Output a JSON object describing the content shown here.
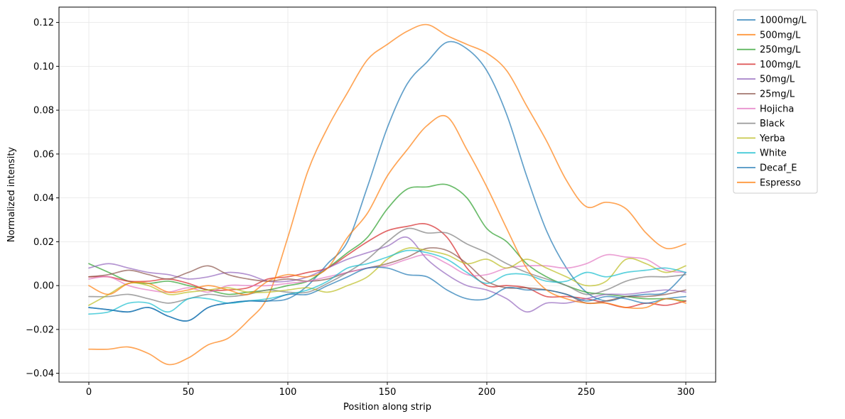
{
  "chart_data": {
    "type": "line",
    "title": "",
    "xlabel": "Position along strip",
    "ylabel": "Normalized intensity",
    "xlim": [
      -15,
      315
    ],
    "ylim": [
      -0.044,
      0.127
    ],
    "xticks": [
      0,
      50,
      100,
      150,
      200,
      250,
      300
    ],
    "xtick_labels": [
      "0",
      "50",
      "100",
      "150",
      "200",
      "250",
      "300"
    ],
    "yticks": [
      -0.04,
      -0.02,
      0.0,
      0.02,
      0.04,
      0.06,
      0.08,
      0.1,
      0.12
    ],
    "ytick_labels": [
      "−0.04",
      "−0.02",
      "0.00",
      "0.02",
      "0.04",
      "0.06",
      "0.08",
      "0.10",
      "0.12"
    ],
    "grid": true,
    "legend_position": "outside-top-right",
    "x": [
      0,
      10,
      20,
      30,
      40,
      50,
      60,
      70,
      80,
      90,
      100,
      110,
      120,
      130,
      140,
      150,
      160,
      170,
      180,
      190,
      200,
      210,
      220,
      230,
      240,
      250,
      260,
      270,
      280,
      290,
      300
    ],
    "series": [
      {
        "name": "1000mg/L",
        "color": "#1f77b4",
        "values": [
          -0.01,
          -0.011,
          -0.012,
          -0.01,
          -0.014,
          -0.016,
          -0.01,
          -0.008,
          -0.007,
          -0.007,
          -0.006,
          0.0,
          0.01,
          0.02,
          0.045,
          0.072,
          0.092,
          0.102,
          0.111,
          0.108,
          0.098,
          0.078,
          0.05,
          0.025,
          0.008,
          -0.003,
          -0.007,
          -0.005,
          -0.004,
          -0.003,
          0.006
        ]
      },
      {
        "name": "500mg/L",
        "color": "#ff7f0e",
        "values": [
          -0.029,
          -0.029,
          -0.028,
          -0.031,
          -0.036,
          -0.033,
          -0.027,
          -0.024,
          -0.016,
          -0.005,
          0.022,
          0.052,
          0.072,
          0.088,
          0.103,
          0.11,
          0.116,
          0.119,
          0.114,
          0.11,
          0.106,
          0.098,
          0.082,
          0.066,
          0.048,
          0.036,
          0.038,
          0.035,
          0.024,
          0.017,
          0.019
        ]
      },
      {
        "name": "250mg/L",
        "color": "#2ca02c",
        "values": [
          0.01,
          0.006,
          0.002,
          0.001,
          0.002,
          0.0,
          -0.002,
          -0.004,
          -0.003,
          -0.002,
          0.0,
          0.002,
          0.008,
          0.015,
          0.022,
          0.035,
          0.044,
          0.045,
          0.046,
          0.04,
          0.026,
          0.02,
          0.01,
          0.004,
          0.0,
          -0.003,
          -0.004,
          -0.005,
          -0.006,
          -0.006,
          -0.007
        ]
      },
      {
        "name": "100mg/L",
        "color": "#d62728",
        "values": [
          0.004,
          0.004,
          0.002,
          0.002,
          0.003,
          0.001,
          -0.002,
          -0.002,
          -0.001,
          0.003,
          0.004,
          0.006,
          0.008,
          0.014,
          0.02,
          0.025,
          0.027,
          0.028,
          0.022,
          0.008,
          0.0,
          0.0,
          -0.001,
          -0.005,
          -0.005,
          -0.006,
          -0.008,
          -0.01,
          -0.008,
          -0.009,
          -0.007
        ]
      },
      {
        "name": "50mg/L",
        "color": "#9467bd",
        "values": [
          0.008,
          0.01,
          0.008,
          0.006,
          0.005,
          0.003,
          0.004,
          0.006,
          0.005,
          0.002,
          0.002,
          0.004,
          0.008,
          0.012,
          0.015,
          0.018,
          0.022,
          0.012,
          0.005,
          0.0,
          -0.002,
          -0.006,
          -0.012,
          -0.008,
          -0.008,
          -0.006,
          -0.004,
          -0.004,
          -0.003,
          -0.002,
          -0.003
        ]
      },
      {
        "name": "25mg/L",
        "color": "#8c564b",
        "values": [
          0.004,
          0.005,
          0.007,
          0.005,
          0.003,
          0.006,
          0.009,
          0.005,
          0.003,
          0.002,
          0.003,
          0.002,
          0.003,
          0.006,
          0.008,
          0.01,
          0.013,
          0.017,
          0.016,
          0.01,
          0.002,
          -0.001,
          -0.001,
          -0.002,
          -0.004,
          -0.008,
          -0.007,
          -0.005,
          -0.005,
          -0.004,
          -0.002
        ]
      },
      {
        "name": "Hojicha",
        "color": "#e377c2",
        "values": [
          0.003,
          0.004,
          0.0,
          -0.002,
          -0.003,
          -0.001,
          -0.003,
          0.0,
          0.0,
          0.0,
          0.001,
          0.002,
          0.004,
          0.006,
          0.008,
          0.009,
          0.012,
          0.014,
          0.01,
          0.005,
          0.005,
          0.008,
          0.009,
          0.009,
          0.008,
          0.01,
          0.014,
          0.013,
          0.012,
          0.007,
          0.006
        ]
      },
      {
        "name": "Black",
        "color": "#7f7f7f",
        "values": [
          -0.005,
          -0.005,
          -0.004,
          -0.006,
          -0.008,
          -0.006,
          -0.004,
          -0.005,
          -0.004,
          -0.002,
          -0.003,
          -0.003,
          0.001,
          0.006,
          0.012,
          0.02,
          0.026,
          0.024,
          0.024,
          0.019,
          0.015,
          0.01,
          0.006,
          0.003,
          0.0,
          -0.004,
          -0.002,
          0.002,
          0.004,
          0.004,
          0.005
        ]
      },
      {
        "name": "Yerba",
        "color": "#bcbd22",
        "values": [
          -0.009,
          -0.004,
          0.001,
          0.0,
          -0.004,
          -0.003,
          -0.002,
          -0.001,
          -0.003,
          -0.003,
          -0.002,
          -0.001,
          -0.003,
          0.0,
          0.004,
          0.012,
          0.017,
          0.016,
          0.014,
          0.01,
          0.012,
          0.008,
          0.012,
          0.008,
          0.004,
          0.0,
          0.002,
          0.012,
          0.01,
          0.006,
          0.009
        ]
      },
      {
        "name": "White",
        "color": "#17becf",
        "values": [
          -0.013,
          -0.012,
          -0.008,
          -0.008,
          -0.012,
          -0.006,
          -0.006,
          -0.008,
          -0.007,
          -0.006,
          -0.004,
          -0.002,
          0.002,
          0.008,
          0.01,
          0.013,
          0.016,
          0.015,
          0.012,
          0.006,
          0.001,
          0.005,
          0.005,
          0.002,
          0.002,
          0.006,
          0.004,
          0.006,
          0.007,
          0.008,
          0.006
        ]
      },
      {
        "name": "Decaf_E",
        "color": "#1f77b4",
        "values": [
          -0.01,
          -0.011,
          -0.012,
          -0.01,
          -0.014,
          -0.016,
          -0.01,
          -0.008,
          -0.007,
          -0.007,
          -0.004,
          -0.004,
          0.0,
          0.004,
          0.008,
          0.008,
          0.005,
          0.004,
          -0.002,
          -0.006,
          -0.006,
          -0.001,
          -0.002,
          -0.002,
          -0.004,
          -0.007,
          -0.005,
          -0.006,
          -0.008,
          -0.006,
          -0.005
        ]
      },
      {
        "name": "Espresso",
        "color": "#ff7f0e",
        "values": [
          0.0,
          -0.004,
          0.001,
          0.001,
          -0.003,
          -0.002,
          0.0,
          -0.002,
          -0.004,
          0.002,
          0.005,
          0.004,
          0.008,
          0.022,
          0.033,
          0.05,
          0.062,
          0.073,
          0.077,
          0.062,
          0.045,
          0.026,
          0.008,
          -0.002,
          -0.006,
          -0.008,
          -0.008,
          -0.01,
          -0.01,
          -0.006,
          -0.008
        ]
      }
    ]
  }
}
